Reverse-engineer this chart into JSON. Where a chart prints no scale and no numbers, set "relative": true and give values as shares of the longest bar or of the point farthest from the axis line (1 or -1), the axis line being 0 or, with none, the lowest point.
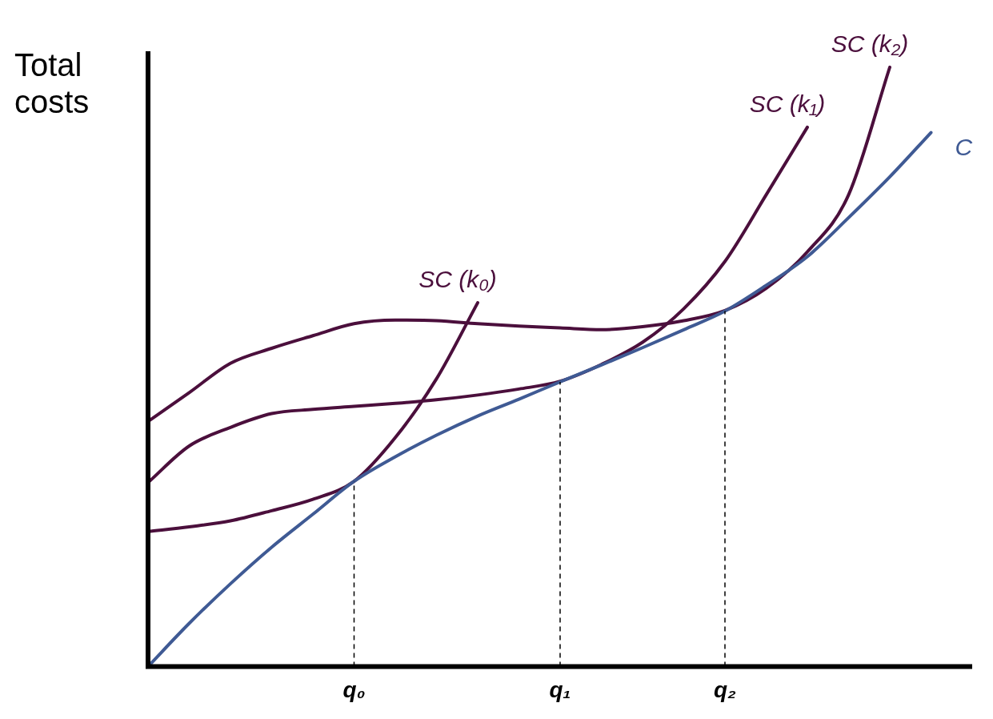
{
  "chart_data": {
    "type": "line",
    "relative": true,
    "ylabel": "Total costs",
    "marker": "none",
    "legend": false,
    "grid": false,
    "categories": [
      null,
      null,
      null,
      null,
      null,
      "q₀",
      null,
      null,
      null,
      null,
      "q₁",
      null,
      null,
      null,
      "q₂",
      null,
      null,
      null,
      null,
      null,
      null
    ],
    "ref_lines": [
      {
        "axis": "x",
        "value": "q₀",
        "line_style": "dashed",
        "color": "#000000"
      },
      {
        "axis": "x",
        "value": "q₁",
        "line_style": "dashed",
        "color": "#000000"
      },
      {
        "axis": "x",
        "value": "q₂",
        "line_style": "dashed",
        "color": "#000000"
      }
    ],
    "series": [
      {
        "name": "C",
        "color": "#3f5a94",
        "values": [
          0,
          0.072,
          0.138,
          0.199,
          0.254,
          0.309,
          0.35,
          0.386,
          0.418,
          0.446,
          0.475,
          0.503,
          0.532,
          0.562,
          0.593,
          0.636,
          0.684,
          0.749,
          0.817,
          0.891,
          null
        ]
      },
      {
        "name": "SC (k₀)",
        "color": "#4b0f3c",
        "values": [
          0.225,
          0.233,
          0.243,
          0.26,
          0.279,
          0.309,
          0.382,
          0.48,
          0.607,
          null,
          null,
          null,
          null,
          null,
          null,
          null,
          null,
          null,
          null,
          null,
          null
        ]
      },
      {
        "name": "SC (k₁)",
        "color": "#4b0f3c",
        "values": [
          0.307,
          0.368,
          0.399,
          0.422,
          0.429,
          0.434,
          0.439,
          0.445,
          0.453,
          0.463,
          0.476,
          0.504,
          0.541,
          0.597,
          0.676,
          0.787,
          0.9,
          null,
          null,
          null,
          null
        ]
      },
      {
        "name": "SC (k₂)",
        "color": "#4b0f3c",
        "values": [
          0.409,
          0.457,
          0.506,
          0.531,
          0.552,
          0.572,
          0.578,
          0.577,
          0.572,
          0.568,
          0.565,
          0.562,
          0.567,
          0.577,
          0.594,
          0.631,
          0.692,
          0.787,
          1,
          null,
          null
        ]
      }
    ]
  }
}
